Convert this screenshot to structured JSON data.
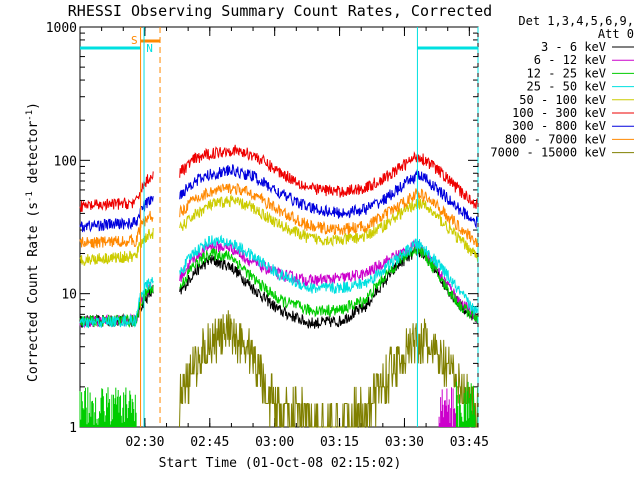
{
  "chart_data": {
    "type": "line",
    "title": "RHESSI Observing Summary Count Rates, Corrected",
    "xlabel": "Start Time (01-Oct-08 02:15:02)",
    "ylabel": "Corrected Count Rate (s⁻¹ detector⁻¹)",
    "ylabel_main": "Corrected Count Rate (s",
    "ylabel_sup1": "-1",
    "ylabel_mid": " detector",
    "ylabel_sup2": "-1",
    "ylabel_end": ")",
    "yscale": "log",
    "ylim": [
      1,
      1000
    ],
    "yticks": [
      {
        "v": 1,
        "t": "1"
      },
      {
        "v": 10,
        "t": "10"
      },
      {
        "v": 100,
        "t": "100"
      },
      {
        "v": 1000,
        "t": "1000"
      }
    ],
    "xlim_min": [
      0,
      92
    ],
    "xticks": [
      {
        "m": 15,
        "t": "02:30"
      },
      {
        "m": 30,
        "t": "02:45"
      },
      {
        "m": 45,
        "t": "03:00"
      },
      {
        "m": 60,
        "t": "03:15"
      },
      {
        "m": 75,
        "t": "03:30"
      },
      {
        "m": 90,
        "t": "03:45"
      }
    ],
    "legend_header": [
      "Det 1,3,4,5,6,9,",
      "Att 0"
    ],
    "legend_position": "right",
    "flags": {
      "saa_label": "S",
      "night_label": "N"
    },
    "gap_min": [
      17,
      23
    ],
    "series": [
      {
        "name": "3 - 6 keV",
        "color": "#000000",
        "shape": "mid",
        "base": 6.5,
        "peak": 20,
        "noise": 0.12,
        "pts": [
          [
            0,
            6.2
          ],
          [
            13,
            6.3
          ],
          [
            14,
            8
          ],
          [
            16,
            10
          ],
          [
            23,
            10
          ],
          [
            26,
            14
          ],
          [
            30,
            18
          ],
          [
            35,
            16
          ],
          [
            40,
            11
          ],
          [
            46,
            7.5
          ],
          [
            53,
            6
          ],
          [
            60,
            6.2
          ],
          [
            66,
            8
          ],
          [
            70,
            12
          ],
          [
            74,
            17
          ],
          [
            78,
            21
          ],
          [
            80,
            19
          ],
          [
            84,
            12
          ],
          [
            88,
            8
          ],
          [
            92,
            6.5
          ]
        ]
      },
      {
        "name": "6 - 12 keV",
        "color": "#cc00cc",
        "shape": "mid",
        "pts": [
          [
            0,
            6.2
          ],
          [
            13,
            6.3
          ],
          [
            14,
            9
          ],
          [
            16,
            11
          ],
          [
            23,
            13
          ],
          [
            26,
            18
          ],
          [
            30,
            23
          ],
          [
            35,
            22
          ],
          [
            40,
            17
          ],
          [
            46,
            14
          ],
          [
            53,
            12.5
          ],
          [
            60,
            13
          ],
          [
            66,
            14
          ],
          [
            70,
            17
          ],
          [
            74,
            20
          ],
          [
            78,
            23
          ],
          [
            80,
            20
          ],
          [
            84,
            13
          ],
          [
            88,
            8.5
          ],
          [
            92,
            6.5
          ]
        ]
      },
      {
        "name": "12 - 25 keV",
        "color": "#00cc00",
        "shape": "mid",
        "pts": [
          [
            0,
            6.2
          ],
          [
            13,
            6.3
          ],
          [
            14,
            8.5
          ],
          [
            16,
            11
          ],
          [
            23,
            11
          ],
          [
            26,
            16
          ],
          [
            30,
            20
          ],
          [
            35,
            19
          ],
          [
            40,
            13
          ],
          [
            46,
            9
          ],
          [
            53,
            7.5
          ],
          [
            60,
            7.5
          ],
          [
            66,
            9
          ],
          [
            70,
            13
          ],
          [
            74,
            18
          ],
          [
            78,
            22
          ],
          [
            80,
            19
          ],
          [
            84,
            12
          ],
          [
            88,
            8
          ],
          [
            92,
            6.5
          ]
        ]
      },
      {
        "name": "25 - 50 keV",
        "color": "#00e0e0",
        "shape": "mid",
        "pts": [
          [
            0,
            6
          ],
          [
            13,
            6.3
          ],
          [
            14,
            10
          ],
          [
            16,
            12
          ],
          [
            23,
            14
          ],
          [
            26,
            20
          ],
          [
            30,
            25
          ],
          [
            35,
            24
          ],
          [
            40,
            19
          ],
          [
            46,
            14
          ],
          [
            53,
            11
          ],
          [
            60,
            11
          ],
          [
            66,
            12
          ],
          [
            70,
            15
          ],
          [
            74,
            19
          ],
          [
            78,
            24
          ],
          [
            80,
            21
          ],
          [
            84,
            15
          ],
          [
            88,
            10
          ],
          [
            92,
            7
          ]
        ]
      },
      {
        "name": "50 - 100 keV",
        "color": "#cccc00",
        "shape": "mid",
        "pts": [
          [
            0,
            18
          ],
          [
            13,
            19
          ],
          [
            14,
            24
          ],
          [
            16,
            28
          ],
          [
            23,
            30
          ],
          [
            26,
            38
          ],
          [
            30,
            46
          ],
          [
            35,
            50
          ],
          [
            40,
            44
          ],
          [
            46,
            33
          ],
          [
            53,
            26
          ],
          [
            60,
            25
          ],
          [
            66,
            27
          ],
          [
            70,
            32
          ],
          [
            74,
            40
          ],
          [
            78,
            48
          ],
          [
            80,
            45
          ],
          [
            84,
            34
          ],
          [
            88,
            25
          ],
          [
            92,
            19
          ]
        ]
      },
      {
        "name": "100 - 300 keV",
        "color": "#ee0000",
        "shape": "mid",
        "pts": [
          [
            0,
            45
          ],
          [
            13,
            48
          ],
          [
            14,
            60
          ],
          [
            16,
            75
          ],
          [
            23,
            80
          ],
          [
            26,
            100
          ],
          [
            30,
            112
          ],
          [
            35,
            120
          ],
          [
            40,
            110
          ],
          [
            46,
            82
          ],
          [
            53,
            62
          ],
          [
            60,
            58
          ],
          [
            66,
            62
          ],
          [
            70,
            72
          ],
          [
            74,
            88
          ],
          [
            78,
            108
          ],
          [
            80,
            100
          ],
          [
            84,
            78
          ],
          [
            88,
            58
          ],
          [
            92,
            46
          ]
        ]
      },
      {
        "name": "300 - 800 keV",
        "color": "#0000dd",
        "shape": "mid",
        "pts": [
          [
            0,
            32
          ],
          [
            13,
            34
          ],
          [
            14,
            42
          ],
          [
            16,
            50
          ],
          [
            23,
            55
          ],
          [
            26,
            68
          ],
          [
            30,
            78
          ],
          [
            35,
            84
          ],
          [
            40,
            76
          ],
          [
            46,
            57
          ],
          [
            53,
            44
          ],
          [
            60,
            40
          ],
          [
            66,
            43
          ],
          [
            70,
            50
          ],
          [
            74,
            62
          ],
          [
            78,
            78
          ],
          [
            80,
            72
          ],
          [
            84,
            55
          ],
          [
            88,
            42
          ],
          [
            92,
            34
          ]
        ]
      },
      {
        "name": "800 - 7000 keV",
        "color": "#ff8800",
        "shape": "mid",
        "pts": [
          [
            0,
            24
          ],
          [
            13,
            25
          ],
          [
            14,
            32
          ],
          [
            16,
            38
          ],
          [
            23,
            40
          ],
          [
            26,
            50
          ],
          [
            30,
            58
          ],
          [
            35,
            62
          ],
          [
            40,
            56
          ],
          [
            46,
            42
          ],
          [
            53,
            32
          ],
          [
            60,
            30
          ],
          [
            66,
            32
          ],
          [
            70,
            38
          ],
          [
            74,
            46
          ],
          [
            78,
            57
          ],
          [
            80,
            53
          ],
          [
            84,
            41
          ],
          [
            88,
            31
          ],
          [
            92,
            24
          ]
        ]
      },
      {
        "name": "7000 - 15000 keV",
        "color": "#808000",
        "shape": "low",
        "pts": [
          [
            23,
            1.6
          ],
          [
            27,
            3
          ],
          [
            30,
            4.5
          ],
          [
            35,
            5
          ],
          [
            39,
            4
          ],
          [
            42,
            2.5
          ],
          [
            45,
            1.4
          ],
          [
            60,
            1
          ],
          [
            66,
            1.4
          ],
          [
            70,
            2.2
          ],
          [
            74,
            3.3
          ],
          [
            78,
            4.5
          ],
          [
            80,
            4.2
          ],
          [
            84,
            3
          ],
          [
            88,
            2
          ],
          [
            92,
            1.3
          ]
        ]
      }
    ]
  }
}
